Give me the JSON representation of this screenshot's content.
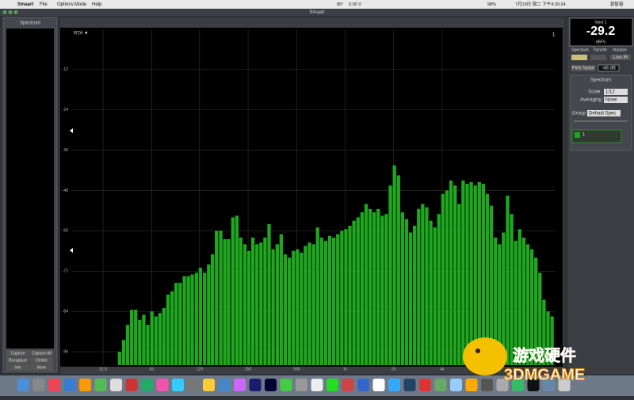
{
  "menu_bar": {
    "app": "Smaart",
    "menus": [
      "File",
      "Options",
      "Mode",
      "Help"
    ],
    "status": [
      "85°",
      "0.00 V",
      "98%",
      "7月19日 周二 下午4:20:24",
      "郭智韬"
    ]
  },
  "window_title": "Smaart",
  "left_panel": {
    "title": "Spectrum",
    "buttons": [
      "Capture",
      "Capture All",
      "Recapture",
      "Delete",
      "Info",
      "More"
    ]
  },
  "chart_data": {
    "type": "bar",
    "title": "RTA ▼",
    "trace_number": "1",
    "color": "#1fa81f",
    "grid": true,
    "xscale": "log",
    "xlim": [
      20,
      20000
    ],
    "ylim": [
      -100,
      0
    ],
    "xticks": [
      31.5,
      63,
      125,
      250,
      500,
      {
        "value": 1000,
        "label": "1k"
      },
      {
        "value": 2000,
        "label": "2k"
      },
      {
        "value": 4000,
        "label": "4k"
      }
    ],
    "yticks": [
      -12,
      -24,
      -36,
      -48,
      -60,
      -72,
      -84,
      -96
    ],
    "x": [
      40,
      42.4,
      44.9,
      47.6,
      50.4,
      53.4,
      56.6,
      59.9,
      63.5,
      67.3,
      71.3,
      75.5,
      80,
      84.8,
      89.8,
      95.1,
      101,
      107,
      113,
      120,
      127,
      135,
      143,
      151,
      160,
      170,
      180,
      190,
      202,
      214,
      226,
      240,
      254,
      269,
      285,
      302,
      320,
      339,
      359,
      381,
      403,
      427,
      453,
      480,
      508,
      538,
      570,
      604,
      640,
      678,
      718,
      761,
      806,
      854,
      905,
      959,
      1016,
      1076,
      1140,
      1208,
      1280,
      1356,
      1437,
      1522,
      1613,
      1709,
      1810,
      1918,
      2032,
      2153,
      2281,
      2416,
      2560,
      2712,
      2874,
      3044,
      3225,
      3417,
      3620,
      3836,
      4064,
      4305,
      4561,
      4833,
      5120,
      5424,
      5747,
      6089,
      6451,
      6834,
      7241,
      7671,
      8127,
      8611,
      9123,
      9665,
      10240,
      10849,
      11494,
      12177,
      12902,
      13669,
      14482,
      15343,
      16255,
      17222,
      18246,
      19331
    ],
    "values": [
      -96,
      -92.5,
      -88,
      -83.5,
      -83.5,
      -86.5,
      -85,
      -88,
      -84,
      -85.5,
      -84.5,
      -83,
      -79,
      -78,
      -75.5,
      -75.5,
      -73.5,
      -73.5,
      -73,
      -72.5,
      -71,
      -72.5,
      -70,
      -67,
      -60,
      -60,
      -62.5,
      -62.5,
      -56,
      -55.5,
      -62,
      -64,
      -66,
      -62,
      -64,
      -63.5,
      -62,
      -58,
      -65.5,
      -64,
      -61,
      -67,
      -68,
      -66,
      -65.5,
      -66.5,
      -64.5,
      -63.5,
      -64,
      -59,
      -62,
      -63,
      -61.5,
      -62,
      -61,
      -60,
      -59.5,
      -58.5,
      -57,
      -56,
      -54.5,
      -52,
      -53.5,
      -54.5,
      -53.5,
      -55.5,
      -55,
      -46.5,
      -40.5,
      -43.5,
      -54.5,
      -56.5,
      -60.5,
      -58.5,
      -53.5,
      -52,
      -53,
      -57,
      -59,
      -55,
      -49,
      -48,
      -45,
      -46.5,
      -52,
      -45,
      -46,
      -45.5,
      -46.5,
      -45.5,
      -46,
      -49,
      -52.5,
      -62,
      -64,
      -60.5,
      -49.5,
      -55,
      -63,
      -59.5,
      -62,
      -64,
      -65.5,
      -68,
      -72.5,
      -80.5,
      -84,
      -85.5
    ]
  },
  "right_panel": {
    "meter": {
      "input": "Input 1",
      "level": "-29.2",
      "unit": "dBFS"
    },
    "tabs": [
      "Spectrum",
      "Transfer",
      "Impulse"
    ],
    "live_ir": "Live IR",
    "generator": {
      "label": "Pink Noise",
      "level": "-48 dB"
    },
    "section": "Spectrum",
    "scale_label": "Scale:",
    "scale": "1/12",
    "averaging_label": "Averaging",
    "averaging": "None",
    "group_label": "Group:",
    "group": "Default Spec",
    "trace": "1"
  },
  "watermark": [
    "游戏硬件",
    "3DMGAME"
  ]
}
